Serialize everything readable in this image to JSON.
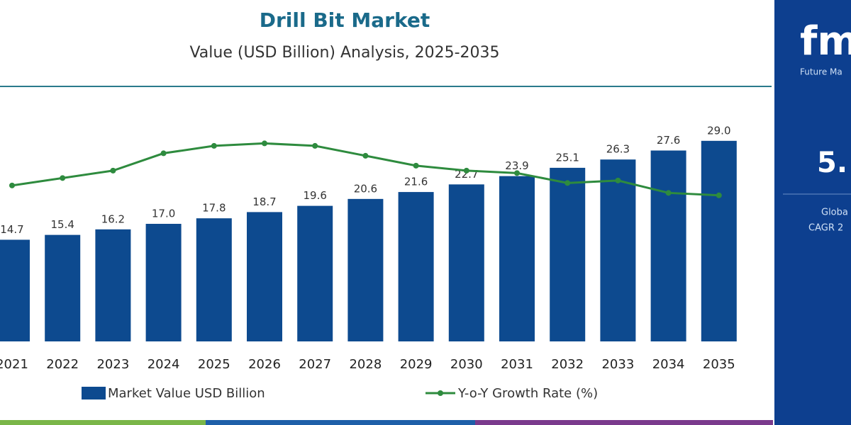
{
  "chart_data": {
    "type": "bar",
    "title": "Drill Bit Market",
    "subtitle": "Value (USD Billion) Analysis, 2025-2035",
    "categories": [
      "2021",
      "2022",
      "2023",
      "2024",
      "2025",
      "2026",
      "2027",
      "2028",
      "2029",
      "2030",
      "2031",
      "2032",
      "2033",
      "2034",
      "2035"
    ],
    "series": [
      {
        "name": "Market Value USD Billion",
        "type": "bar",
        "color": "#0d4a8f",
        "values": [
          14.7,
          15.4,
          16.2,
          17.0,
          17.8,
          18.7,
          19.6,
          20.6,
          21.6,
          22.7,
          23.9,
          25.1,
          26.3,
          27.6,
          29.0
        ],
        "value_labels": [
          "14.7",
          "15.4",
          "16.2",
          "17.0",
          "17.8",
          "18.7",
          "19.6",
          "20.6",
          "21.6",
          "22.7",
          "23.9",
          "25.1",
          "26.3",
          "27.6",
          "29.0"
        ]
      },
      {
        "name": "Y-o-Y Growth Rate (%)",
        "type": "line",
        "axis": "y2",
        "color": "#2e8b3e",
        "values": [
          4.6,
          4.75,
          4.9,
          5.25,
          5.4,
          5.45,
          5.4,
          5.2,
          5.0,
          4.9,
          4.85,
          4.65,
          4.7,
          4.45,
          4.4
        ]
      }
    ],
    "ylim": [
      0,
      34
    ],
    "y2lim": [
      1.45,
      6.2
    ]
  },
  "panel": {
    "logo": "fmi",
    "company": "Future Ma",
    "cagr": "5.",
    "line1": "Globa",
    "line2": "CAGR 2"
  }
}
